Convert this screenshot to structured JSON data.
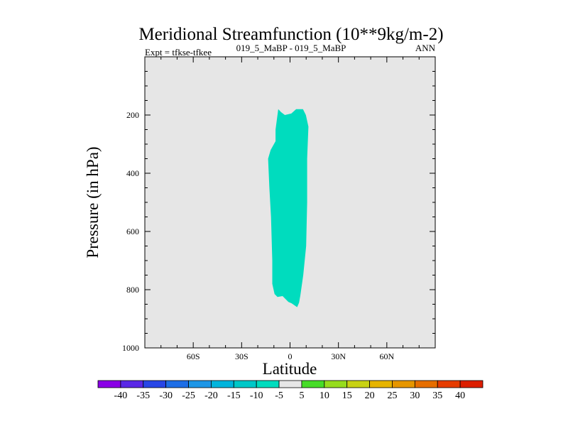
{
  "chart_data": {
    "type": "heatmap",
    "title": "Meridional Streamfunction (10**9kg/m-2)",
    "left_subtitle": "Expt = tfkse-tfkee",
    "center_subtitle": "019_5_MaBP - 019_5_MaBP",
    "right_subtitle": "ANN",
    "xlabel": "Latitude",
    "ylabel": "Pressure (in hPa)",
    "xlim": [
      -90,
      90
    ],
    "ylim": [
      1000,
      0
    ],
    "x_ticks": [
      {
        "value": -60,
        "label": "60S"
      },
      {
        "value": -30,
        "label": "30S"
      },
      {
        "value": 0,
        "label": "0"
      },
      {
        "value": 30,
        "label": "30N"
      },
      {
        "value": 60,
        "label": "60N"
      }
    ],
    "y_ticks": [
      {
        "value": 200,
        "label": "200"
      },
      {
        "value": 400,
        "label": "400"
      },
      {
        "value": 600,
        "label": "600"
      },
      {
        "value": 800,
        "label": "800"
      },
      {
        "value": 1000,
        "label": "1000"
      }
    ],
    "background_color": "#e6e6e6",
    "region": {
      "name": "-10 to -5 band",
      "color": "#00dcbe",
      "polygon": [
        [
          -7.3,
          180
        ],
        [
          -5.6,
          190
        ],
        [
          -3.2,
          200
        ],
        [
          0.8,
          195
        ],
        [
          3.8,
          180
        ],
        [
          8.0,
          180
        ],
        [
          9.8,
          200
        ],
        [
          11.4,
          240
        ],
        [
          10.6,
          350
        ],
        [
          10.6,
          500
        ],
        [
          10.0,
          650
        ],
        [
          8.2,
          750
        ],
        [
          6.4,
          820
        ],
        [
          5.6,
          845
        ],
        [
          4.4,
          860
        ],
        [
          1.0,
          847
        ],
        [
          -1.0,
          842
        ],
        [
          -4.6,
          822
        ],
        [
          -7.8,
          825
        ],
        [
          -9.6,
          815
        ],
        [
          -11.0,
          780
        ],
        [
          -11.0,
          700
        ],
        [
          -11.8,
          550
        ],
        [
          -12.8,
          450
        ],
        [
          -13.6,
          350
        ],
        [
          -12.0,
          320
        ],
        [
          -9.0,
          290
        ],
        [
          -9.0,
          250
        ]
      ]
    },
    "colorbar": {
      "labels": [
        "-40",
        "-35",
        "-30",
        "-25",
        "-20",
        "-15",
        "-10",
        "-5",
        "5",
        "10",
        "15",
        "20",
        "25",
        "30",
        "35",
        "40"
      ],
      "colors": [
        "#8a00e6",
        "#5a28e6",
        "#2846e6",
        "#1e6ee6",
        "#1e96e6",
        "#00b4dc",
        "#00c8c8",
        "#00dcbe",
        "#e6e6e6",
        "#46dc28",
        "#96dc1e",
        "#c8d214",
        "#e6b400",
        "#e69600",
        "#e66e00",
        "#e63c00",
        "#dc1e00"
      ]
    }
  }
}
